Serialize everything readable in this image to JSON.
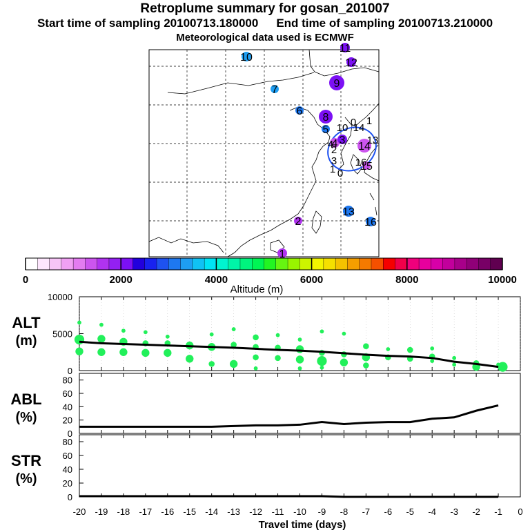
{
  "header": {
    "title": "Retroplume summary for gosan_201007",
    "start_label": "Start time of sampling 20100713.180000",
    "end_label": "End time of sampling 20100713.210000",
    "met_label": "Meteorological data used is ECMWF"
  },
  "colorbar": {
    "label": "Altitude  (m)",
    "ticks": [
      "0",
      "2000",
      "4000",
      "6000",
      "8000",
      "10000"
    ],
    "colors": [
      "#ffffff",
      "#fde6fd",
      "#f7c5f7",
      "#f0a0f3",
      "#e37cf0",
      "#cc55ee",
      "#b033f0",
      "#9420f2",
      "#7c10f4",
      "#2200dd",
      "#1822f0",
      "#1e52f0",
      "#1e78f0",
      "#1e9ef2",
      "#10c2f4",
      "#00e4f4",
      "#00f5d0",
      "#00f5a8",
      "#00f57e",
      "#00f554",
      "#22f522",
      "#66f511",
      "#99f500",
      "#ccf500",
      "#f2f500",
      "#f5e000",
      "#f5c200",
      "#f59e00",
      "#f57a00",
      "#f55000",
      "#f50000",
      "#f0004a",
      "#f0007c",
      "#e8009e",
      "#d800a8",
      "#c2009c",
      "#a8008a",
      "#900078",
      "#780066",
      "#600050"
    ]
  },
  "map_labels": [
    {
      "id": "10",
      "color": "#1e9ef2"
    },
    {
      "id": "11",
      "color": "#7c10f4"
    },
    {
      "id": "12",
      "color": "#7c10f4"
    },
    {
      "id": "9",
      "color": "#7c10f4"
    },
    {
      "id": "7",
      "color": "#1e9ef2"
    },
    {
      "id": "6",
      "color": "#1e78f0"
    },
    {
      "id": "8",
      "color": "#7c10f4"
    },
    {
      "id": "5",
      "color": "#1e78f0"
    },
    {
      "id": "4",
      "color": "#cc55ee"
    },
    {
      "id": "3",
      "color": "#7c10f4"
    },
    {
      "id": "2",
      "color": "#b033f0"
    },
    {
      "id": "1",
      "color": "#b033f0"
    },
    {
      "id": "13",
      "color": "#1e78f0"
    },
    {
      "id": "16",
      "color": "#1e78f0"
    },
    {
      "id": "14",
      "color": "#cc55ee"
    },
    {
      "id": "15",
      "color": "#cc55ee"
    }
  ],
  "chart_data": [
    {
      "type": "scatter",
      "panel": "ALT",
      "ylabel": "ALT\n(m)",
      "ylabel_line1": "ALT",
      "ylabel_line2": "(m)",
      "xlabel": "Travel time (days)",
      "xlim": [
        -20,
        0
      ],
      "ylim": [
        0,
        10000
      ],
      "yticks": [
        "10000",
        "5000",
        "0"
      ],
      "xticks": [
        "-20",
        "-19",
        "-18",
        "-17",
        "-16",
        "-15",
        "-14",
        "-13",
        "-12",
        "-11",
        "-10",
        "-9",
        "-8",
        "-7",
        "-6",
        "-5",
        "-4",
        "-3",
        "-2",
        "-1",
        "0"
      ],
      "median_line": {
        "x": [
          -20,
          -19,
          -18,
          -17,
          -16,
          -15,
          -14,
          -13,
          -12,
          -11,
          -10,
          -9,
          -8,
          -7,
          -6,
          -5,
          -4,
          -3,
          -2,
          -1
        ],
        "y": [
          3900,
          3700,
          3600,
          3500,
          3400,
          3300,
          3200,
          3100,
          2950,
          2800,
          2700,
          2550,
          2350,
          2150,
          2000,
          1900,
          1700,
          1200,
          900,
          500
        ]
      },
      "points": [
        {
          "x": -20,
          "y": 6500,
          "s": 1
        },
        {
          "x": -20,
          "y": 4200,
          "s": 4
        },
        {
          "x": -20,
          "y": 2600,
          "s": 3
        },
        {
          "x": -19,
          "y": 6200,
          "s": 1
        },
        {
          "x": -19,
          "y": 4300,
          "s": 3
        },
        {
          "x": -19,
          "y": 2500,
          "s": 3
        },
        {
          "x": -18,
          "y": 5400,
          "s": 1
        },
        {
          "x": -18,
          "y": 3900,
          "s": 3
        },
        {
          "x": -18,
          "y": 2500,
          "s": 3
        },
        {
          "x": -17,
          "y": 5200,
          "s": 1
        },
        {
          "x": -17,
          "y": 3700,
          "s": 2
        },
        {
          "x": -17,
          "y": 2400,
          "s": 3
        },
        {
          "x": -16,
          "y": 4600,
          "s": 1
        },
        {
          "x": -16,
          "y": 3700,
          "s": 2
        },
        {
          "x": -16,
          "y": 2400,
          "s": 3
        },
        {
          "x": -15,
          "y": 3400,
          "s": 3
        },
        {
          "x": -15,
          "y": 1600,
          "s": 3
        },
        {
          "x": -14,
          "y": 4900,
          "s": 1
        },
        {
          "x": -14,
          "y": 3200,
          "s": 3
        },
        {
          "x": -14,
          "y": 900,
          "s": 2
        },
        {
          "x": -13,
          "y": 5600,
          "s": 1
        },
        {
          "x": -13,
          "y": 3500,
          "s": 2
        },
        {
          "x": -13,
          "y": 900,
          "s": 3
        },
        {
          "x": -12,
          "y": 4500,
          "s": 2
        },
        {
          "x": -12,
          "y": 3200,
          "s": 2
        },
        {
          "x": -12,
          "y": 1800,
          "s": 2
        },
        {
          "x": -12,
          "y": 300,
          "s": 1
        },
        {
          "x": -11,
          "y": 4800,
          "s": 1
        },
        {
          "x": -11,
          "y": 3100,
          "s": 2
        },
        {
          "x": -11,
          "y": 1700,
          "s": 2
        },
        {
          "x": -10,
          "y": 4200,
          "s": 1
        },
        {
          "x": -10,
          "y": 2900,
          "s": 3
        },
        {
          "x": -10,
          "y": 1500,
          "s": 3
        },
        {
          "x": -10,
          "y": 300,
          "s": 1
        },
        {
          "x": -9,
          "y": 5300,
          "s": 1
        },
        {
          "x": -9,
          "y": 2400,
          "s": 2
        },
        {
          "x": -9,
          "y": 1300,
          "s": 4
        },
        {
          "x": -9,
          "y": 400,
          "s": 1
        },
        {
          "x": -8,
          "y": 5000,
          "s": 1
        },
        {
          "x": -8,
          "y": 2200,
          "s": 2
        },
        {
          "x": -8,
          "y": 1100,
          "s": 3
        },
        {
          "x": -7,
          "y": 3300,
          "s": 2
        },
        {
          "x": -7,
          "y": 1800,
          "s": 3
        },
        {
          "x": -7,
          "y": 700,
          "s": 2
        },
        {
          "x": -6,
          "y": 2900,
          "s": 1
        },
        {
          "x": -6,
          "y": 1800,
          "s": 2
        },
        {
          "x": -5,
          "y": 2800,
          "s": 2
        },
        {
          "x": -5,
          "y": 1600,
          "s": 2
        },
        {
          "x": -4,
          "y": 3000,
          "s": 1
        },
        {
          "x": -4,
          "y": 1900,
          "s": 2
        },
        {
          "x": -4,
          "y": 1300,
          "s": 1
        },
        {
          "x": -3,
          "y": 1700,
          "s": 1
        },
        {
          "x": -3,
          "y": 800,
          "s": 1
        },
        {
          "x": -2,
          "y": 1000,
          "s": 2
        },
        {
          "x": -2,
          "y": 500,
          "s": 3
        },
        {
          "x": -1,
          "y": 800,
          "s": 1
        },
        {
          "x": -0.8,
          "y": 500,
          "s": 4
        }
      ]
    },
    {
      "type": "line",
      "panel": "ABL",
      "ylabel": "ABL\n(%)",
      "ylabel_line1": "ABL",
      "ylabel_line2": "(%)",
      "ylim": [
        0,
        90
      ],
      "yticks": [
        "80",
        "60",
        "40",
        "20",
        "0"
      ],
      "x": [
        -20,
        -19,
        -18,
        -17,
        -16,
        -15,
        -14,
        -13,
        -12,
        -11,
        -10,
        -9,
        -8,
        -7,
        -6,
        -5,
        -4,
        -3,
        -2,
        -1
      ],
      "y": [
        10,
        10,
        10,
        10,
        10,
        10,
        10,
        11,
        12,
        12,
        13,
        17,
        14,
        16,
        17,
        17,
        22,
        24,
        34,
        42
      ]
    },
    {
      "type": "line",
      "panel": "STR",
      "ylabel": "STR\n(%)",
      "ylabel_line1": "STR",
      "ylabel_line2": "(%)",
      "ylim": [
        0,
        90
      ],
      "yticks": [
        "80",
        "60",
        "40",
        "20",
        "0"
      ],
      "x": [
        -20,
        -19,
        -18,
        -17,
        -16,
        -15,
        -14,
        -13,
        -12,
        -11,
        -10,
        -9,
        -8,
        -7,
        -6,
        -5,
        -4,
        -3,
        -2,
        -1
      ],
      "y": [
        1,
        1,
        1,
        1,
        1,
        1,
        1,
        1,
        1,
        1,
        1,
        1,
        0,
        0,
        0,
        0,
        0,
        0,
        0,
        0
      ]
    }
  ]
}
